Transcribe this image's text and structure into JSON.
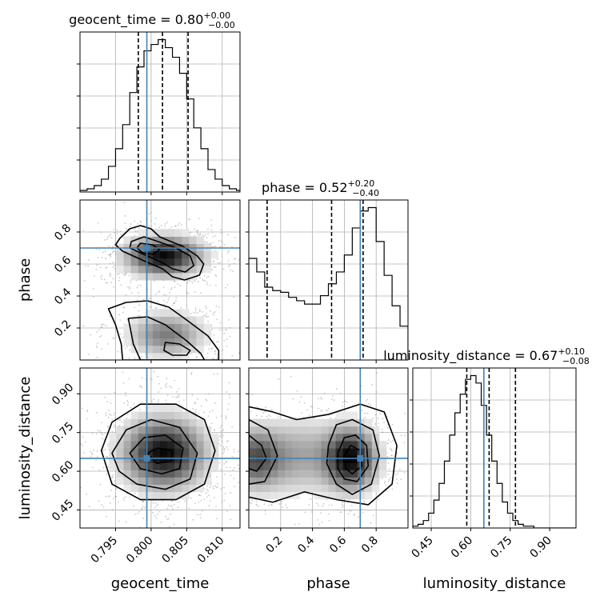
{
  "chart_data": {
    "type": "corner",
    "parameters": [
      "geocent_time",
      "phase",
      "luminosity_distance"
    ],
    "truths": [
      0.7994,
      0.7,
      0.65
    ],
    "colors": {
      "truth": "#4682b4",
      "line": "#000000",
      "grid": "#b0b0b0",
      "scatter": "#9a9a9a"
    },
    "grid": true,
    "panels": [
      {
        "kind": "hist",
        "param": "geocent_time",
        "xlim": [
          0.79,
          0.8125
        ],
        "title": {
          "main": "geocent_time = 0.80",
          "sup": "+0.00",
          "sub": "−0.00"
        },
        "quantiles": [
          0.7982,
          0.8016,
          0.8052
        ],
        "bins": {
          "start": 0.79,
          "step": 0.001,
          "counts": [
            1,
            2,
            4,
            8,
            16,
            27,
            42,
            62,
            78,
            88,
            92,
            95,
            90,
            84,
            74,
            58,
            40,
            27,
            14,
            8,
            4,
            2,
            1
          ]
        }
      },
      {
        "kind": "hist",
        "param": "phase",
        "xlim": [
          0.0,
          1.0
        ],
        "title": {
          "main": "phase = 0.52",
          "sup": "+0.20",
          "sub": "−0.40"
        },
        "quantiles": [
          0.115,
          0.52,
          0.718
        ],
        "bins": {
          "start": 0.0,
          "step": 0.05,
          "counts": [
            60,
            52,
            43,
            41,
            40,
            37,
            35,
            33,
            33,
            38,
            45,
            52,
            62,
            78,
            88,
            90,
            70,
            50,
            32,
            20
          ]
        }
      },
      {
        "kind": "hist",
        "param": "luminosity_distance",
        "xlim": [
          0.38,
          1.0
        ],
        "title": {
          "main": "luminosity_distance = 0.67",
          "sup": "+0.10",
          "sub": "−0.08"
        },
        "quantiles": [
          0.585,
          0.67,
          0.77
        ],
        "bins": {
          "start": 0.38,
          "step": 0.02,
          "counts": [
            1,
            2,
            4,
            8,
            15,
            24,
            36,
            50,
            62,
            72,
            80,
            82,
            78,
            66,
            50,
            36,
            24,
            14,
            8,
            4,
            2,
            1,
            1,
            0,
            0,
            0,
            0,
            0,
            0,
            0,
            0
          ]
        }
      },
      {
        "kind": "2d",
        "x": "geocent_time",
        "y": "phase",
        "xlim": [
          0.79,
          0.8125
        ],
        "ylim": [
          0.0,
          1.0
        ],
        "modes": [
          {
            "cx": 0.8018,
            "cy": 0.65,
            "sx": 0.0035,
            "sy": 0.08,
            "w": 1.0
          },
          {
            "cx": 0.8022,
            "cy": 0.16,
            "sx": 0.0035,
            "sy": 0.09,
            "w": 0.55
          }
        ],
        "contours": [
          [
            [
              0.7956,
              0.76
            ],
            [
              0.797,
              0.82
            ],
            [
              0.7985,
              0.84
            ],
            [
              0.8,
              0.82
            ],
            [
              0.8012,
              0.77
            ],
            [
              0.8028,
              0.74
            ],
            [
              0.8045,
              0.71
            ],
            [
              0.8065,
              0.65
            ],
            [
              0.8074,
              0.6
            ],
            [
              0.8068,
              0.53
            ],
            [
              0.8047,
              0.5
            ],
            [
              0.803,
              0.52
            ],
            [
              0.8016,
              0.57
            ],
            [
              0.799,
              0.62
            ],
            [
              0.796,
              0.68
            ],
            [
              0.795,
              0.72
            ]
          ],
          [
            [
              0.7972,
              0.74
            ],
            [
              0.799,
              0.77
            ],
            [
              0.801,
              0.74
            ],
            [
              0.8035,
              0.7
            ],
            [
              0.8055,
              0.65
            ],
            [
              0.806,
              0.59
            ],
            [
              0.8048,
              0.55
            ],
            [
              0.803,
              0.57
            ],
            [
              0.8015,
              0.61
            ],
            [
              0.799,
              0.66
            ],
            [
              0.797,
              0.7
            ]
          ],
          [
            [
              0.7985,
              0.73
            ],
            [
              0.8002,
              0.72
            ],
            [
              0.8012,
              0.69
            ],
            [
              0.8003,
              0.66
            ],
            [
              0.7988,
              0.67
            ],
            [
              0.798,
              0.7
            ]
          ],
          [
            [
              0.794,
              0.32
            ],
            [
              0.7965,
              0.36
            ],
            [
              0.7995,
              0.37
            ],
            [
              0.8025,
              0.33
            ],
            [
              0.805,
              0.25
            ],
            [
              0.808,
              0.15
            ],
            [
              0.8095,
              0.06
            ],
            [
              0.8095,
              0.0
            ],
            [
              0.796,
              0.0
            ],
            [
              0.7958,
              0.1
            ],
            [
              0.795,
              0.22
            ]
          ],
          [
            [
              0.7968,
              0.26
            ],
            [
              0.7995,
              0.27
            ],
            [
              0.802,
              0.22
            ],
            [
              0.805,
              0.12
            ],
            [
              0.807,
              0.04
            ],
            [
              0.8075,
              0.0
            ],
            [
              0.7985,
              0.0
            ],
            [
              0.7975,
              0.1
            ]
          ],
          [
            [
              0.802,
              0.11
            ],
            [
              0.804,
              0.1
            ],
            [
              0.8055,
              0.06
            ],
            [
              0.805,
              0.03
            ],
            [
              0.803,
              0.03
            ],
            [
              0.8018,
              0.06
            ]
          ]
        ]
      },
      {
        "kind": "2d",
        "x": "geocent_time",
        "y": "luminosity_distance",
        "xlim": [
          0.79,
          0.8125
        ],
        "ylim": [
          0.38,
          1.0
        ],
        "modes": [
          {
            "cx": 0.8018,
            "cy": 0.67,
            "sx": 0.0038,
            "sy": 0.09,
            "w": 1.0
          }
        ],
        "contours": [
          [
            [
              0.793,
              0.68
            ],
            [
              0.7945,
              0.79
            ],
            [
              0.7985,
              0.86
            ],
            [
              0.8035,
              0.86
            ],
            [
              0.8075,
              0.8
            ],
            [
              0.809,
              0.68
            ],
            [
              0.8075,
              0.55
            ],
            [
              0.8035,
              0.49
            ],
            [
              0.7985,
              0.49
            ],
            [
              0.7945,
              0.55
            ]
          ],
          [
            [
              0.7945,
              0.67
            ],
            [
              0.7965,
              0.76
            ],
            [
              0.8,
              0.8
            ],
            [
              0.804,
              0.77
            ],
            [
              0.8065,
              0.67
            ],
            [
              0.8055,
              0.57
            ],
            [
              0.802,
              0.53
            ],
            [
              0.798,
              0.55
            ],
            [
              0.7955,
              0.6
            ]
          ],
          [
            [
              0.797,
              0.67
            ],
            [
              0.799,
              0.73
            ],
            [
              0.802,
              0.74
            ],
            [
              0.8045,
              0.69
            ],
            [
              0.804,
              0.61
            ],
            [
              0.8015,
              0.59
            ],
            [
              0.7985,
              0.61
            ]
          ],
          [
            [
              0.7995,
              0.67
            ],
            [
              0.801,
              0.69
            ],
            [
              0.803,
              0.68
            ],
            [
              0.8028,
              0.64
            ],
            [
              0.8008,
              0.63
            ]
          ]
        ]
      },
      {
        "kind": "2d",
        "x": "phase",
        "y": "luminosity_distance",
        "xlim": [
          0.0,
          1.0
        ],
        "ylim": [
          0.38,
          1.0
        ],
        "modes": [
          {
            "cx": 0.04,
            "cy": 0.65,
            "sx": 0.12,
            "sy": 0.08,
            "w": 0.7
          },
          {
            "cx": 0.64,
            "cy": 0.65,
            "sx": 0.11,
            "sy": 0.08,
            "w": 1.0
          },
          {
            "cx": 0.33,
            "cy": 0.66,
            "sx": 0.15,
            "sy": 0.1,
            "w": 0.35
          }
        ],
        "contours": [
          [
            [
              0.0,
              0.85
            ],
            [
              0.15,
              0.83
            ],
            [
              0.3,
              0.8
            ],
            [
              0.5,
              0.82
            ],
            [
              0.7,
              0.86
            ],
            [
              0.85,
              0.83
            ],
            [
              0.93,
              0.7
            ],
            [
              0.9,
              0.55
            ],
            [
              0.75,
              0.47
            ],
            [
              0.55,
              0.49
            ],
            [
              0.35,
              0.52
            ],
            [
              0.15,
              0.48
            ],
            [
              0.0,
              0.5
            ]
          ],
          [
            [
              0.0,
              0.8
            ],
            [
              0.12,
              0.76
            ],
            [
              0.18,
              0.66
            ],
            [
              0.1,
              0.56
            ],
            [
              0.0,
              0.55
            ]
          ],
          [
            [
              0.0,
              0.74
            ],
            [
              0.08,
              0.7
            ],
            [
              0.11,
              0.65
            ],
            [
              0.05,
              0.6
            ],
            [
              0.0,
              0.61
            ]
          ],
          [
            [
              0.5,
              0.7
            ],
            [
              0.55,
              0.78
            ],
            [
              0.65,
              0.8
            ],
            [
              0.78,
              0.76
            ],
            [
              0.82,
              0.66
            ],
            [
              0.77,
              0.55
            ],
            [
              0.65,
              0.51
            ],
            [
              0.55,
              0.55
            ],
            [
              0.49,
              0.63
            ]
          ],
          [
            [
              0.56,
              0.67
            ],
            [
              0.6,
              0.73
            ],
            [
              0.67,
              0.74
            ],
            [
              0.74,
              0.7
            ],
            [
              0.75,
              0.62
            ],
            [
              0.68,
              0.56
            ],
            [
              0.6,
              0.57
            ],
            [
              0.56,
              0.61
            ]
          ],
          [
            [
              0.6,
              0.66
            ],
            [
              0.64,
              0.7
            ],
            [
              0.7,
              0.68
            ],
            [
              0.71,
              0.62
            ],
            [
              0.65,
              0.59
            ],
            [
              0.61,
              0.61
            ]
          ]
        ]
      }
    ],
    "ticks": {
      "geocent_time": [
        "0.795",
        "0.800",
        "0.805",
        "0.810"
      ],
      "phase_x": [
        "0.2",
        "0.4",
        "0.6",
        "0.8"
      ],
      "phase_y": [
        "0.2",
        "0.4",
        "0.6",
        "0.8"
      ],
      "luminosity_distance": [
        "0.45",
        "0.60",
        "0.75",
        "0.90"
      ]
    },
    "axis_labels": {
      "x": [
        "geocent_time",
        "phase",
        "luminosity_distance"
      ],
      "y": [
        "phase",
        "luminosity_distance"
      ]
    }
  }
}
